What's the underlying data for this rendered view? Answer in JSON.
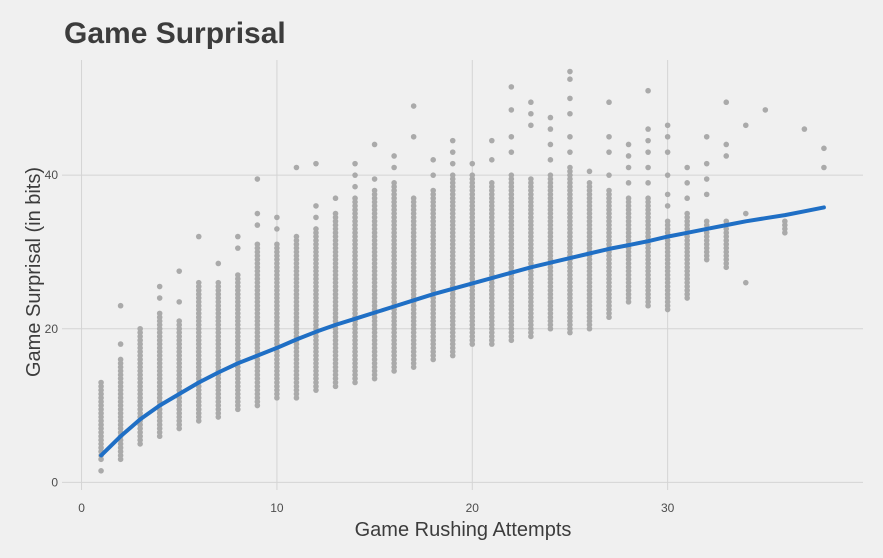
{
  "chart_data": {
    "type": "scatter",
    "title": "Game Surprisal",
    "xlabel": "Game Rushing Attempts",
    "ylabel": "Game Surprisal (in bits)",
    "xlim": [
      -1,
      40
    ],
    "ylim": [
      -1,
      55
    ],
    "x_ticks": [
      0,
      10,
      20,
      30
    ],
    "y_ticks": [
      0,
      20,
      40
    ],
    "grid": true,
    "point_color": "#aaaaaa",
    "line_color": "#1f6fc5",
    "background": "#f0f0f0",
    "series": [
      {
        "type": "scatter",
        "points_by_x": [
          {
            "x": 1,
            "y_min": 3,
            "y_max": 13,
            "extra": [
              1.5
            ]
          },
          {
            "x": 2,
            "y_min": 3,
            "y_max": 16,
            "extra": [
              18,
              23
            ]
          },
          {
            "x": 3,
            "y_min": 5,
            "y_max": 20,
            "extra": []
          },
          {
            "x": 4,
            "y_min": 6,
            "y_max": 22,
            "extra": [
              24,
              25.5
            ]
          },
          {
            "x": 5,
            "y_min": 7,
            "y_max": 21,
            "extra": [
              23.5,
              27.5
            ]
          },
          {
            "x": 6,
            "y_min": 8,
            "y_max": 26,
            "extra": [
              32
            ]
          },
          {
            "x": 7,
            "y_min": 8.5,
            "y_max": 26,
            "extra": [
              28.5
            ]
          },
          {
            "x": 8,
            "y_min": 9.5,
            "y_max": 27,
            "extra": [
              30.5,
              32
            ]
          },
          {
            "x": 9,
            "y_min": 10,
            "y_max": 31,
            "extra": [
              33.5,
              35,
              39.5
            ]
          },
          {
            "x": 10,
            "y_min": 11,
            "y_max": 31,
            "extra": [
              33,
              34.5
            ]
          },
          {
            "x": 11,
            "y_min": 11,
            "y_max": 32,
            "extra": [
              41
            ]
          },
          {
            "x": 12,
            "y_min": 12,
            "y_max": 33,
            "extra": [
              34.5,
              36,
              41.5
            ]
          },
          {
            "x": 13,
            "y_min": 12.5,
            "y_max": 35,
            "extra": [
              37
            ]
          },
          {
            "x": 14,
            "y_min": 13,
            "y_max": 37,
            "extra": [
              38.5,
              40,
              41.5
            ]
          },
          {
            "x": 15,
            "y_min": 13.5,
            "y_max": 38,
            "extra": [
              39.5,
              44
            ]
          },
          {
            "x": 16,
            "y_min": 14.5,
            "y_max": 39,
            "extra": [
              41,
              42.5
            ]
          },
          {
            "x": 17,
            "y_min": 15,
            "y_max": 37,
            "extra": [
              45,
              49
            ]
          },
          {
            "x": 18,
            "y_min": 16,
            "y_max": 38,
            "extra": [
              40,
              42
            ]
          },
          {
            "x": 19,
            "y_min": 16.5,
            "y_max": 40,
            "extra": [
              41.5,
              43,
              44.5
            ]
          },
          {
            "x": 20,
            "y_min": 18,
            "y_max": 40,
            "extra": [
              41.5
            ]
          },
          {
            "x": 21,
            "y_min": 18,
            "y_max": 39,
            "extra": [
              42,
              44.5
            ]
          },
          {
            "x": 22,
            "y_min": 18.5,
            "y_max": 40,
            "extra": [
              43,
              45,
              48.5,
              51.5
            ]
          },
          {
            "x": 23,
            "y_min": 19,
            "y_max": 39.5,
            "extra": [
              46.5,
              48,
              49.5
            ]
          },
          {
            "x": 24,
            "y_min": 20,
            "y_max": 40,
            "extra": [
              42,
              44,
              46,
              47.5
            ]
          },
          {
            "x": 25,
            "y_min": 19.5,
            "y_max": 41,
            "extra": [
              43,
              45,
              48,
              50,
              52.5,
              53.5
            ]
          },
          {
            "x": 26,
            "y_min": 20,
            "y_max": 39,
            "extra": [
              40.5
            ]
          },
          {
            "x": 27,
            "y_min": 21.5,
            "y_max": 38,
            "extra": [
              40,
              43,
              45,
              49.5
            ]
          },
          {
            "x": 28,
            "y_min": 23.5,
            "y_max": 37,
            "extra": [
              39,
              41,
              42.5,
              44
            ]
          },
          {
            "x": 29,
            "y_min": 23,
            "y_max": 37,
            "extra": [
              39,
              41,
              43,
              44.5,
              46,
              51
            ]
          },
          {
            "x": 30,
            "y_min": 22.5,
            "y_max": 34,
            "extra": [
              36,
              37.5,
              40,
              43,
              45,
              46.5
            ]
          },
          {
            "x": 31,
            "y_min": 24,
            "y_max": 35,
            "extra": [
              37,
              39,
              41
            ]
          },
          {
            "x": 32,
            "y_min": 29,
            "y_max": 34,
            "extra": [
              37.5,
              39.5,
              41.5,
              45
            ]
          },
          {
            "x": 33,
            "y_min": 28,
            "y_max": 34,
            "extra": [
              42.5,
              44,
              49.5
            ]
          },
          {
            "x": 34,
            "y_min": 26,
            "y_max": 26,
            "extra": [
              35,
              46.5
            ]
          },
          {
            "x": 35,
            "y_min": 48.5,
            "y_max": 48.5,
            "extra": []
          },
          {
            "x": 36,
            "y_min": 32.5,
            "y_max": 34,
            "extra": []
          },
          {
            "x": 37,
            "y_min": 46,
            "y_max": 46,
            "extra": []
          },
          {
            "x": 38,
            "y_min": 41,
            "y_max": 41,
            "extra": [
              43.5
            ]
          }
        ]
      },
      {
        "type": "line",
        "x": [
          1,
          2,
          3,
          4,
          5,
          6,
          7,
          8,
          9,
          10,
          11,
          12,
          13,
          14,
          15,
          16,
          17,
          18,
          19,
          20,
          21,
          22,
          23,
          24,
          25,
          26,
          27,
          28,
          29,
          30,
          31,
          32,
          33,
          34,
          35,
          36,
          37,
          38
        ],
        "y": [
          3.5,
          6,
          8.2,
          10,
          11.5,
          13,
          14.3,
          15.5,
          16.5,
          17.5,
          18.6,
          19.6,
          20.5,
          21.3,
          22.1,
          22.9,
          23.7,
          24.5,
          25.2,
          25.9,
          26.6,
          27.3,
          28,
          28.6,
          29.2,
          29.8,
          30.4,
          30.9,
          31.4,
          32,
          32.5,
          33,
          33.5,
          34,
          34.4,
          34.8,
          35.3,
          35.8
        ]
      }
    ]
  }
}
